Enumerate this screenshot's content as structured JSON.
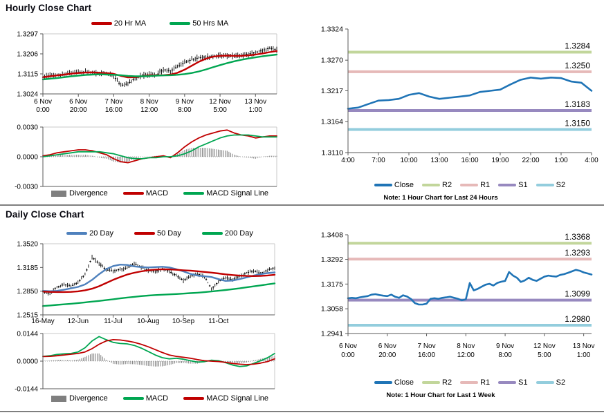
{
  "page": {
    "hourly_title": "Hourly Close Chart",
    "daily_title": "Daily Close Chart"
  },
  "colors": {
    "close_blue": "#1F74B6",
    "ma20_day_blue": "#4F81BD",
    "red_line": "#C00000",
    "green_line": "#00A651",
    "divergence_gray": "#7F7F7F",
    "r2_olive": "#C2D69B",
    "r1_pink": "#E6B9B8",
    "s1_purple": "#9789BF",
    "s2_lightblue": "#93CDDD"
  },
  "chart_data": [
    {
      "id": "hourly-price",
      "type": "candlestick",
      "yticks": [
        "1.3297",
        "1.3206",
        "1.3115",
        "1.3024"
      ],
      "xticks": [
        [
          "6 Nov",
          "0:00"
        ],
        [
          "6 Nov",
          "20:00"
        ],
        [
          "7 Nov",
          "16:00"
        ],
        [
          "8 Nov",
          "12:00"
        ],
        [
          "9 Nov",
          "8:00"
        ],
        [
          "12 Nov",
          "5:00"
        ],
        [
          "13 Nov",
          "1:00"
        ]
      ],
      "xtick_pos": [
        0,
        20,
        40,
        60,
        80,
        100,
        120
      ],
      "xmax": 132,
      "series": [
        {
          "name": "Close",
          "style": "candle",
          "color": "#000000",
          "values": [
            1.3103,
            1.3107,
            1.311,
            1.3113,
            1.3118,
            1.3122,
            1.3124,
            1.312,
            1.3117,
            1.3121,
            1.3105,
            1.3062,
            1.307,
            1.3095,
            1.3108,
            1.3112,
            1.3108,
            1.3135,
            1.3128,
            1.3148,
            1.3165,
            1.318,
            1.3188,
            1.3192,
            1.3195,
            1.32,
            1.3196,
            1.3198,
            1.32,
            1.3205,
            1.3212,
            1.3222,
            1.3232,
            1.3224
          ]
        },
        {
          "name": "20 Hr MA",
          "style": "line",
          "color": "#C00000",
          "values": [
            1.31,
            1.3104,
            1.3108,
            1.3112,
            1.3116,
            1.3119,
            1.3121,
            1.3122,
            1.312,
            1.3118,
            1.3115,
            1.3106,
            1.3099,
            1.31,
            1.3104,
            1.3108,
            1.3109,
            1.3109,
            1.3112,
            1.312,
            1.3134,
            1.3152,
            1.317,
            1.3184,
            1.3193,
            1.3197,
            1.3198,
            1.3197,
            1.3197,
            1.3199,
            1.3203,
            1.3208,
            1.3214,
            1.3219
          ]
        },
        {
          "name": "50 Hrs MA",
          "style": "line",
          "color": "#00A651",
          "values": [
            1.309,
            1.3093,
            1.3096,
            1.31,
            1.3104,
            1.3107,
            1.311,
            1.3112,
            1.3113,
            1.3112,
            1.3111,
            1.3109,
            1.3106,
            1.3104,
            1.3104,
            1.3105,
            1.3107,
            1.3108,
            1.3109,
            1.3111,
            1.3114,
            1.3119,
            1.3126,
            1.3135,
            1.3145,
            1.3155,
            1.3164,
            1.3172,
            1.3179,
            1.3185,
            1.319,
            1.3195,
            1.3199,
            1.3203
          ]
        }
      ]
    },
    {
      "id": "hourly-macd",
      "type": "macd",
      "yticks": [
        "0.0030",
        "0.0000",
        "-0.0030"
      ],
      "xticks": [],
      "xtick_pos": [],
      "xmax": 132,
      "series": [
        {
          "name": "Divergence",
          "style": "bar",
          "color": "#7F7F7F",
          "derived": "diff"
        },
        {
          "name": "MACD",
          "style": "line",
          "color": "#C00000",
          "values": [
            0.0001,
            0.0002,
            0.0004,
            0.0005,
            0.0006,
            0.0007,
            0.0007,
            0.0006,
            0.0004,
            0.0002,
            -0.0002,
            -0.0005,
            -0.0006,
            -0.0004,
            -0.0002,
            -0.0001,
            0.0,
            0.0001,
            -0.0001,
            0.0004,
            0.001,
            0.0015,
            0.0019,
            0.0022,
            0.0024,
            0.0026,
            0.0027,
            0.0024,
            0.0022,
            0.0021,
            0.0019,
            0.002,
            0.0021,
            0.0021
          ]
        },
        {
          "name": "MACD Signal Line",
          "style": "line",
          "color": "#00A651",
          "values": [
            0.0,
            0.0001,
            0.0002,
            0.0003,
            0.0004,
            0.0005,
            0.0005,
            0.0005,
            0.0005,
            0.0004,
            0.0003,
            0.0001,
            -0.0001,
            -0.0002,
            -0.0002,
            -0.0001,
            -0.0001,
            0.0,
            0.0,
            0.0001,
            0.0003,
            0.0006,
            0.001,
            0.0013,
            0.0016,
            0.0019,
            0.0021,
            0.0022,
            0.0022,
            0.0022,
            0.0021,
            0.002,
            0.002,
            0.002
          ]
        }
      ]
    },
    {
      "id": "hourly-pivot",
      "type": "line",
      "note": "Note: 1 Hour Chart for Last 24 Hours",
      "yticks": [
        "1.3324",
        "1.3270",
        "1.3217",
        "1.3164",
        "1.3110"
      ],
      "xticks": [
        "4:00",
        "7:00",
        "10:00",
        "13:00",
        "16:00",
        "19:00",
        "22:00",
        "1:00",
        "4:00"
      ],
      "xtick_pos": [
        0,
        3,
        6,
        9,
        12,
        15,
        18,
        21,
        24
      ],
      "xmax": 24,
      "series": [
        {
          "name": "Close",
          "style": "line",
          "color": "#1F74B6",
          "values": [
            1.3186,
            1.3188,
            1.3194,
            1.32,
            1.3201,
            1.3203,
            1.321,
            1.3213,
            1.3207,
            1.3203,
            1.3205,
            1.3207,
            1.3209,
            1.3215,
            1.3217,
            1.3219,
            1.3228,
            1.3236,
            1.324,
            1.3238,
            1.324,
            1.3239,
            1.3233,
            1.3231,
            1.3217
          ]
        }
      ],
      "levels": [
        {
          "name": "R2",
          "label": "1.3284",
          "value": 1.3284,
          "color": "#C2D69B"
        },
        {
          "name": "R1",
          "label": "1.3250",
          "value": 1.325,
          "color": "#E6B9B8"
        },
        {
          "name": "S1",
          "label": "1.3183",
          "value": 1.3183,
          "color": "#9789BF"
        },
        {
          "name": "S2",
          "label": "1.3150",
          "value": 1.315,
          "color": "#93CDDD"
        }
      ]
    },
    {
      "id": "daily-price",
      "type": "candlestick",
      "yticks": [
        "1.3520",
        "1.3185",
        "1.2850",
        "1.2515"
      ],
      "xticks": [
        "16-May",
        "12-Jun",
        "11-Jul",
        "10-Aug",
        "10-Sep",
        "11-Oct"
      ],
      "xtick_pos": [
        0,
        20,
        40,
        60,
        80,
        100
      ],
      "xmax": 132,
      "series": [
        {
          "name": "Close",
          "style": "candle",
          "color": "#000000",
          "values": [
            1.284,
            1.2815,
            1.291,
            1.2945,
            1.292,
            1.297,
            1.309,
            1.333,
            1.324,
            1.315,
            1.3135,
            1.316,
            1.3175,
            1.3235,
            1.319,
            1.314,
            1.313,
            1.3165,
            1.313,
            1.307,
            1.3,
            1.3065,
            1.3095,
            1.306,
            1.288,
            1.2985,
            1.3045,
            1.301,
            1.3065,
            1.311,
            1.3135,
            1.31,
            1.315,
            1.3185
          ]
        },
        {
          "name": "20 Day",
          "style": "line",
          "color": "#4F81BD",
          "values": [
            1.2855,
            1.285,
            1.2855,
            1.287,
            1.289,
            1.291,
            1.2945,
            1.301,
            1.309,
            1.316,
            1.3205,
            1.3225,
            1.322,
            1.32,
            1.319,
            1.3185,
            1.319,
            1.3195,
            1.3185,
            1.316,
            1.313,
            1.3095,
            1.307,
            1.306,
            1.305,
            1.302,
            1.2995,
            1.3,
            1.302,
            1.3045,
            1.307,
            1.309,
            1.3105,
            1.3115
          ]
        },
        {
          "name": "50 Day",
          "style": "line",
          "color": "#C00000",
          "values": [
            1.2845,
            1.284,
            1.2838,
            1.2838,
            1.284,
            1.2848,
            1.2862,
            1.2885,
            1.292,
            1.2965,
            1.301,
            1.305,
            1.3085,
            1.311,
            1.313,
            1.3145,
            1.3155,
            1.316,
            1.3158,
            1.3152,
            1.3145,
            1.314,
            1.3132,
            1.3122,
            1.3112,
            1.31,
            1.3088,
            1.3078,
            1.307,
            1.3065,
            1.3063,
            1.3065,
            1.3072,
            1.3082
          ]
        },
        {
          "name": "200 Day",
          "style": "line",
          "color": "#00A651",
          "values": [
            1.264,
            1.2648,
            1.2656,
            1.2664,
            1.2672,
            1.2682,
            1.2692,
            1.2702,
            1.2712,
            1.2724,
            1.2736,
            1.2748,
            1.276,
            1.277,
            1.278,
            1.2788,
            1.2795,
            1.28,
            1.2805,
            1.281,
            1.2816,
            1.2822,
            1.2828,
            1.2836,
            1.2846,
            1.2856,
            1.2866,
            1.2878,
            1.289,
            1.2904,
            1.2918,
            1.2932,
            1.2946,
            1.296
          ]
        }
      ]
    },
    {
      "id": "daily-macd",
      "type": "macd",
      "yticks": [
        "0.0144",
        "0.0000",
        "-0.0144"
      ],
      "xticks": [],
      "xtick_pos": [],
      "xmax": 132,
      "series": [
        {
          "name": "Divergence",
          "style": "bar",
          "color": "#7F7F7F",
          "derived": "diff"
        },
        {
          "name": "MACD",
          "style": "line",
          "color": "#00A651",
          "values": [
            0.0025,
            0.0028,
            0.0035,
            0.0038,
            0.004,
            0.0048,
            0.007,
            0.0105,
            0.0128,
            0.0112,
            0.0098,
            0.0092,
            0.009,
            0.0082,
            0.0068,
            0.005,
            0.0032,
            0.0018,
            0.0012,
            0.0015,
            0.001,
            0.0002,
            -0.0005,
            -0.0003,
            0.0005,
            0.0002,
            -0.0008,
            -0.002,
            -0.0028,
            -0.0025,
            -0.0012,
            0.0002,
            0.0018,
            0.004
          ]
        },
        {
          "name": "MACD Signal Line",
          "style": "line",
          "color": "#C00000",
          "values": [
            0.0024,
            0.0025,
            0.0028,
            0.0032,
            0.0036,
            0.004,
            0.0048,
            0.0065,
            0.0088,
            0.0105,
            0.0112,
            0.011,
            0.0105,
            0.0098,
            0.0088,
            0.0075,
            0.006,
            0.0045,
            0.0032,
            0.0025,
            0.002,
            0.0015,
            0.0008,
            0.0002,
            0.0,
            -0.0002,
            -0.0006,
            -0.0012,
            -0.0016,
            -0.0018,
            -0.0016,
            -0.001,
            -0.0002,
            0.0012
          ]
        }
      ]
    },
    {
      "id": "daily-pivot",
      "type": "line",
      "note": "Note: 1 Hour Chart for Last 1 Week",
      "yticks": [
        "1.3408",
        "1.3292",
        "1.3175",
        "1.3058",
        "1.2941"
      ],
      "xticks": [
        [
          "6 Nov",
          "0:00"
        ],
        [
          "6 Nov",
          "20:00"
        ],
        [
          "7 Nov",
          "16:00"
        ],
        [
          "8 Nov",
          "12:00"
        ],
        [
          "9 Nov",
          "8:00"
        ],
        [
          "12 Nov",
          "5:00"
        ],
        [
          "13 Nov",
          "1:00"
        ]
      ],
      "xtick_pos": [
        0,
        20,
        40,
        60,
        80,
        100,
        120
      ],
      "xmax": 124,
      "series": [
        {
          "name": "Close",
          "style": "line",
          "color": "#1F74B6",
          "values": [
            1.3108,
            1.311,
            1.3108,
            1.3112,
            1.3115,
            1.3118,
            1.3125,
            1.3127,
            1.3123,
            1.312,
            1.3118,
            1.3125,
            1.3115,
            1.311,
            1.3122,
            1.3116,
            1.3105,
            1.3085,
            1.3078,
            1.3078,
            1.3082,
            1.3105,
            1.3108,
            1.3105,
            1.311,
            1.3112,
            1.3115,
            1.311,
            1.3105,
            1.3098,
            1.3103,
            1.318,
            1.3145,
            1.3152,
            1.3162,
            1.3172,
            1.3176,
            1.3168,
            1.318,
            1.3186,
            1.319,
            1.3232,
            1.3215,
            1.3205,
            1.3185,
            1.3192,
            1.3205,
            1.3195,
            1.319,
            1.32,
            1.321,
            1.3215,
            1.3212,
            1.321,
            1.3218,
            1.3222,
            1.3228,
            1.3235,
            1.3242,
            1.3238,
            1.323,
            1.3225,
            1.322
          ]
        }
      ],
      "levels": [
        {
          "name": "R2",
          "label": "1.3368",
          "value": 1.3368,
          "color": "#C2D69B"
        },
        {
          "name": "R1",
          "label": "1.3293",
          "value": 1.3293,
          "color": "#E6B9B8"
        },
        {
          "name": "S1",
          "label": "1.3099",
          "value": 1.3099,
          "color": "#9789BF"
        },
        {
          "name": "S2",
          "label": "1.2980",
          "value": 1.298,
          "color": "#93CDDD"
        }
      ]
    }
  ]
}
